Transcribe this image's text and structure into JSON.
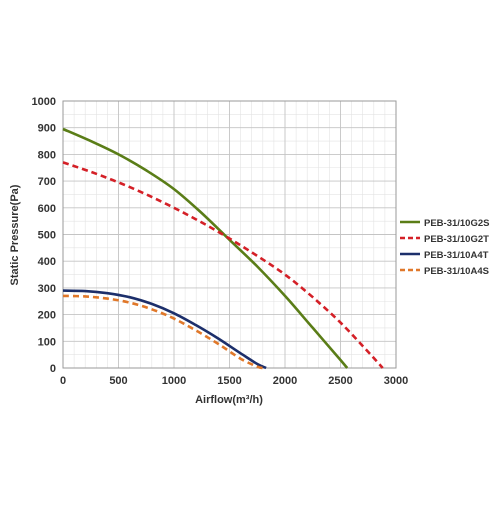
{
  "chart_data": {
    "type": "line",
    "title": "",
    "xlabel": "Airflow(m³/h)",
    "ylabel": "Static Pressure(Pa)",
    "xlim": [
      0,
      3000
    ],
    "ylim": [
      0,
      1000
    ],
    "x_ticks": [
      "0",
      "500",
      "1000",
      "1500",
      "2000",
      "2500",
      "3000"
    ],
    "y_ticks": [
      "0",
      "100",
      "200",
      "300",
      "400",
      "500",
      "600",
      "700",
      "800",
      "900",
      "1000"
    ],
    "x_tick_values": [
      0,
      500,
      1000,
      1500,
      2000,
      2500,
      3000
    ],
    "y_tick_values": [
      0,
      100,
      200,
      300,
      400,
      500,
      600,
      700,
      800,
      900,
      1000
    ],
    "grid": true,
    "minor_grid": true,
    "legend_position": "right",
    "series": [
      {
        "name": "PEB-31/10G2S",
        "color": "#5a7d17",
        "dash": "solid",
        "x": [
          0,
          250,
          500,
          750,
          1000,
          1250,
          1500,
          1750,
          2000,
          2250,
          2500,
          2560
        ],
        "y": [
          895,
          850,
          800,
          740,
          670,
          580,
          480,
          380,
          270,
          150,
          30,
          0
        ]
      },
      {
        "name": "PEB-31/10G2T",
        "color": "#d42027",
        "dash": "dashed",
        "x": [
          0,
          250,
          500,
          750,
          1000,
          1250,
          1500,
          1750,
          2000,
          2250,
          2500,
          2750,
          2880
        ],
        "y": [
          770,
          735,
          695,
          650,
          600,
          545,
          485,
          420,
          350,
          265,
          170,
          60,
          0
        ]
      },
      {
        "name": "PEB-31/10A4T",
        "color": "#1c2f6b",
        "dash": "solid",
        "x": [
          0,
          200,
          400,
          600,
          800,
          1000,
          1200,
          1400,
          1600,
          1750,
          1830
        ],
        "y": [
          290,
          288,
          280,
          265,
          240,
          205,
          160,
          110,
          55,
          15,
          0
        ]
      },
      {
        "name": "PEB-31/10A4S",
        "color": "#e0782a",
        "dash": "dashed",
        "x": [
          0,
          200,
          400,
          600,
          800,
          1000,
          1200,
          1400,
          1600,
          1750,
          1800
        ],
        "y": [
          270,
          268,
          260,
          245,
          220,
          185,
          140,
          90,
          35,
          5,
          0
        ]
      }
    ]
  }
}
